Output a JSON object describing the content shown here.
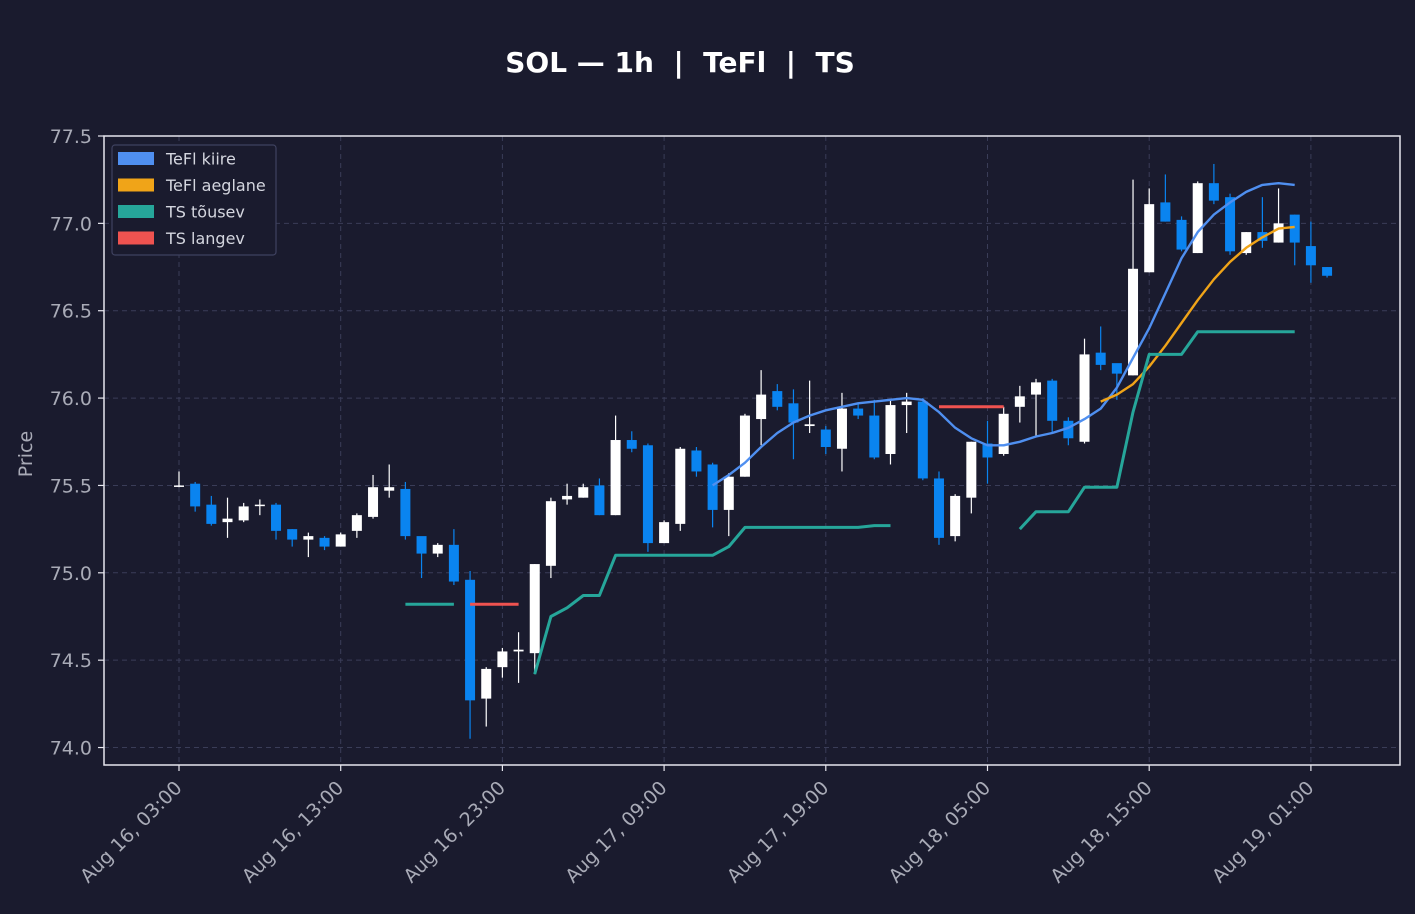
{
  "chart_data": {
    "type": "candlestick",
    "title": "SOL — 1h  |  TeFl  |  TS",
    "ylabel": "Price",
    "ylim": [
      73.9,
      77.5
    ],
    "yticks": [
      "74.0",
      "74.5",
      "75.0",
      "75.5",
      "76.0",
      "76.5",
      "77.0",
      "77.5"
    ],
    "x_start_hour": 0,
    "x_end_hour": 73.5,
    "xticks": [
      {
        "hour": 0,
        "label": "Aug 16, 03:00"
      },
      {
        "hour": 10,
        "label": "Aug 16, 13:00"
      },
      {
        "hour": 20,
        "label": "Aug 16, 23:00"
      },
      {
        "hour": 30,
        "label": "Aug 17, 09:00"
      },
      {
        "hour": 40,
        "label": "Aug 17, 19:00"
      },
      {
        "hour": 50,
        "label": "Aug 18, 05:00"
      },
      {
        "hour": 60,
        "label": "Aug 18, 15:00"
      },
      {
        "hour": 70,
        "label": "Aug 19, 01:00"
      }
    ],
    "candles": [
      [
        75.5,
        75.5,
        75.58,
        75.49
      ],
      [
        75.51,
        75.38,
        75.52,
        75.35
      ],
      [
        75.39,
        75.28,
        75.44,
        75.27
      ],
      [
        75.29,
        75.31,
        75.43,
        75.2
      ],
      [
        75.3,
        75.38,
        75.4,
        75.29
      ],
      [
        75.39,
        75.39,
        75.42,
        75.33
      ],
      [
        75.39,
        75.24,
        75.4,
        75.19
      ],
      [
        75.25,
        75.19,
        75.25,
        75.15
      ],
      [
        75.19,
        75.21,
        75.23,
        75.09
      ],
      [
        75.2,
        75.15,
        75.21,
        75.13
      ],
      [
        75.15,
        75.22,
        75.23,
        75.15
      ],
      [
        75.24,
        75.33,
        75.34,
        75.2
      ],
      [
        75.32,
        75.49,
        75.56,
        75.31
      ],
      [
        75.47,
        75.49,
        75.62,
        75.43
      ],
      [
        75.48,
        75.21,
        75.52,
        75.19
      ],
      [
        75.21,
        75.11,
        75.2,
        74.97
      ],
      [
        75.11,
        75.16,
        75.17,
        75.09
      ],
      [
        75.16,
        74.95,
        75.25,
        74.93
      ],
      [
        74.96,
        74.27,
        75.01,
        74.05
      ],
      [
        74.28,
        74.45,
        74.46,
        74.12
      ],
      [
        74.46,
        74.55,
        74.57,
        74.4
      ],
      [
        74.55,
        74.56,
        74.66,
        74.37
      ],
      [
        74.54,
        75.05,
        75.05,
        74.42
      ],
      [
        75.04,
        75.41,
        75.43,
        74.97
      ],
      [
        75.42,
        75.44,
        75.51,
        75.39
      ],
      [
        75.43,
        75.49,
        75.51,
        75.43
      ],
      [
        75.5,
        75.33,
        75.54,
        75.33
      ],
      [
        75.33,
        75.76,
        75.9,
        75.33
      ],
      [
        75.76,
        75.71,
        75.81,
        75.69
      ],
      [
        75.73,
        75.17,
        75.74,
        75.12
      ],
      [
        75.17,
        75.29,
        75.3,
        75.17
      ],
      [
        75.28,
        75.71,
        75.72,
        75.24
      ],
      [
        75.7,
        75.58,
        75.72,
        75.55
      ],
      [
        75.62,
        75.36,
        75.63,
        75.26
      ],
      [
        75.36,
        75.55,
        75.57,
        75.21
      ],
      [
        75.55,
        75.9,
        75.91,
        75.55
      ],
      [
        75.88,
        76.02,
        76.16,
        75.73
      ],
      [
        76.04,
        75.95,
        76.08,
        75.93
      ],
      [
        75.97,
        75.86,
        76.05,
        75.65
      ],
      [
        75.84,
        75.85,
        76.1,
        75.8
      ],
      [
        75.82,
        75.72,
        75.84,
        75.68
      ],
      [
        75.71,
        75.94,
        76.03,
        75.58
      ],
      [
        75.94,
        75.9,
        75.97,
        75.88
      ],
      [
        75.9,
        75.66,
        75.99,
        75.65
      ],
      [
        75.68,
        75.96,
        75.99,
        75.62
      ],
      [
        75.96,
        75.98,
        76.03,
        75.8
      ],
      [
        75.98,
        75.54,
        76.0,
        75.53
      ],
      [
        75.54,
        75.2,
        75.58,
        75.16
      ],
      [
        75.21,
        75.44,
        75.45,
        75.18
      ],
      [
        75.43,
        75.75,
        75.75,
        75.34
      ],
      [
        75.74,
        75.66,
        75.87,
        75.51
      ],
      [
        75.68,
        75.91,
        75.95,
        75.67
      ],
      [
        75.95,
        76.01,
        76.07,
        75.86
      ],
      [
        76.02,
        76.09,
        76.11,
        75.78
      ],
      [
        76.1,
        75.87,
        76.11,
        75.8
      ],
      [
        75.87,
        75.77,
        75.89,
        75.73
      ],
      [
        75.75,
        76.25,
        76.34,
        75.74
      ],
      [
        76.26,
        76.19,
        76.41,
        76.16
      ],
      [
        76.2,
        76.14,
        76.18,
        75.99
      ],
      [
        76.13,
        76.74,
        77.25,
        76.13
      ],
      [
        76.72,
        77.11,
        77.2,
        76.72
      ],
      [
        77.12,
        77.01,
        77.28,
        77.01
      ],
      [
        77.02,
        76.85,
        77.04,
        76.84
      ],
      [
        76.83,
        77.23,
        77.24,
        76.83
      ],
      [
        77.23,
        77.13,
        77.34,
        77.11
      ],
      [
        77.15,
        76.84,
        77.17,
        76.82
      ],
      [
        76.83,
        76.95,
        76.95,
        76.82
      ],
      [
        76.95,
        76.9,
        77.15,
        76.86
      ],
      [
        76.89,
        77.0,
        77.2,
        76.89
      ],
      [
        77.05,
        76.89,
        77.05,
        76.76
      ],
      [
        76.87,
        76.76,
        77.01,
        76.66
      ],
      [
        76.75,
        76.7,
        76.75,
        76.69
      ]
    ],
    "series": [
      {
        "name": "TeFl kiire",
        "color": "#4f8ff0",
        "segments": [
          [
            [
              33,
              75.5
            ],
            [
              34,
              75.56
            ],
            [
              35,
              75.63
            ],
            [
              36,
              75.72
            ],
            [
              37,
              75.8
            ],
            [
              38,
              75.86
            ],
            [
              39,
              75.9
            ],
            [
              40,
              75.93
            ],
            [
              41,
              75.95
            ],
            [
              42,
              75.97
            ],
            [
              43,
              75.98
            ],
            [
              44,
              75.99
            ],
            [
              45,
              76.0
            ],
            [
              46,
              75.99
            ],
            [
              47,
              75.92
            ],
            [
              48,
              75.83
            ],
            [
              49,
              75.77
            ],
            [
              50,
              75.73
            ],
            [
              51,
              75.73
            ],
            [
              52,
              75.75
            ],
            [
              53,
              75.78
            ],
            [
              54,
              75.8
            ],
            [
              55,
              75.83
            ],
            [
              56,
              75.88
            ],
            [
              57,
              75.94
            ],
            [
              58,
              76.06
            ],
            [
              59,
              76.23
            ],
            [
              60,
              76.4
            ],
            [
              61,
              76.6
            ],
            [
              62,
              76.8
            ],
            [
              63,
              76.95
            ],
            [
              64,
              77.05
            ],
            [
              65,
              77.12
            ],
            [
              66,
              77.18
            ],
            [
              67,
              77.22
            ],
            [
              68,
              77.23
            ],
            [
              69,
              77.22
            ]
          ]
        ]
      },
      {
        "name": "TeFl aeglane",
        "color": "#f0a418",
        "segments": [
          [
            [
              57,
              75.98
            ],
            [
              58,
              76.02
            ],
            [
              59,
              76.08
            ],
            [
              60,
              76.18
            ],
            [
              61,
              76.3
            ],
            [
              62,
              76.43
            ],
            [
              63,
              76.56
            ],
            [
              64,
              76.68
            ],
            [
              65,
              76.78
            ],
            [
              66,
              76.86
            ],
            [
              67,
              76.92
            ],
            [
              68,
              76.97
            ],
            [
              69,
              76.98
            ]
          ]
        ]
      },
      {
        "name": "TS tõusev",
        "color": "#26a69a",
        "segments": [
          [
            [
              14,
              74.82
            ],
            [
              17,
              74.82
            ]
          ],
          [
            [
              22,
              74.42
            ],
            [
              23,
              74.75
            ],
            [
              24,
              74.8
            ],
            [
              25,
              74.87
            ],
            [
              26,
              74.87
            ],
            [
              27,
              75.1
            ],
            [
              28,
              75.1
            ],
            [
              29,
              75.1
            ],
            [
              30,
              75.1
            ],
            [
              31,
              75.1
            ],
            [
              32,
              75.1
            ],
            [
              33,
              75.1
            ],
            [
              34,
              75.15
            ],
            [
              35,
              75.26
            ],
            [
              36,
              75.26
            ],
            [
              37,
              75.26
            ],
            [
              38,
              75.26
            ],
            [
              39,
              75.26
            ],
            [
              40,
              75.26
            ],
            [
              41,
              75.26
            ],
            [
              42,
              75.26
            ],
            [
              43,
              75.27
            ],
            [
              44,
              75.27
            ]
          ],
          [
            [
              52,
              75.25
            ],
            [
              53,
              75.35
            ],
            [
              54,
              75.35
            ],
            [
              55,
              75.35
            ],
            [
              56,
              75.49
            ],
            [
              57,
              75.49
            ],
            [
              58,
              75.49
            ],
            [
              59,
              75.92
            ],
            [
              60,
              76.25
            ],
            [
              61,
              76.25
            ],
            [
              62,
              76.25
            ],
            [
              63,
              76.38
            ],
            [
              64,
              76.38
            ],
            [
              65,
              76.38
            ],
            [
              66,
              76.38
            ],
            [
              67,
              76.38
            ],
            [
              68,
              76.38
            ],
            [
              69,
              76.38
            ]
          ]
        ]
      },
      {
        "name": "TS langev",
        "color": "#ef5350",
        "segments": [
          [
            [
              18,
              74.82
            ],
            [
              21,
              74.82
            ]
          ],
          [
            [
              47,
              75.95
            ],
            [
              51,
              75.95
            ]
          ]
        ]
      }
    ],
    "up_color": "#ffffff",
    "down_color": "#0a84f0",
    "background": "#1a1b2e",
    "grid": true,
    "legend_position": "top-left"
  }
}
